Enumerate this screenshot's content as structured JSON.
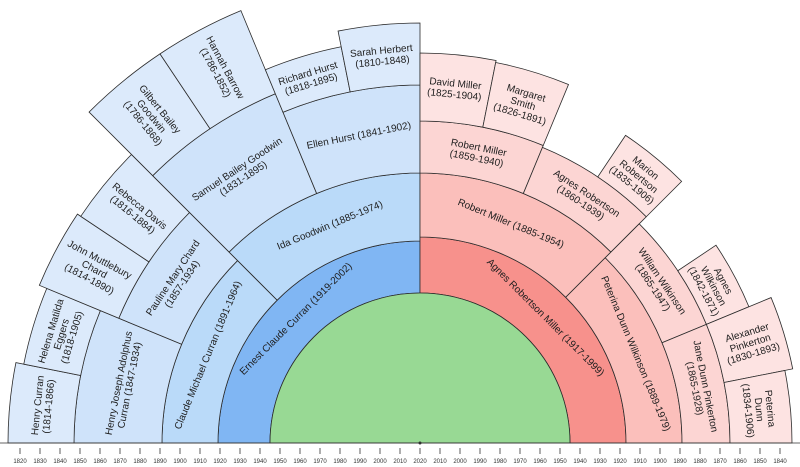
{
  "colors": {
    "left": [
      "#80b6f3",
      "#badaf9",
      "#cfe3fa",
      "#dceafb"
    ],
    "right": [
      "#f7918c",
      "#fbbfbb",
      "#fcd5d3",
      "#fde3e2"
    ],
    "center": "#98d994",
    "stroke": "#2b2b2b"
  },
  "fan_chart": {
    "left": {
      "name": "Ernest Claude Curran",
      "born": 1919,
      "died": 2002,
      "parents": [
        {
          "name": "Claude Michael Curran",
          "born": 1891,
          "died": 1964,
          "parents": [
            {
              "name": "Henry Joseph Adolphus Curran",
              "born": 1847,
              "died": 1934,
              "parents": [
                {
                  "name": "Henry Curran",
                  "born": 1814,
                  "died": 1866
                },
                {
                  "name": "Helena Matilda Eggers",
                  "born": 1818,
                  "died": 1905
                }
              ]
            },
            {
              "name": "Pauline Mary Chard",
              "born": 1857,
              "died": 1934,
              "parents": [
                {
                  "name": "John Muttlebury Chard",
                  "born": 1814,
                  "died": 1890
                },
                {
                  "name": "Rebecca Davis",
                  "born": 1816,
                  "died": 1884
                }
              ]
            }
          ]
        },
        {
          "name": "Ida Goodwin",
          "born": 1885,
          "died": 1974,
          "parents": [
            {
              "name": "Samuel Bailey Goodwin",
              "born": 1831,
              "died": 1895,
              "parents": [
                {
                  "name": "Gilbert Bailey Goodwin",
                  "born": 1786,
                  "died": 1868
                },
                {
                  "name": "Hannah Barrow",
                  "born": 1786,
                  "died": 1852
                }
              ]
            },
            {
              "name": "Ellen Hurst",
              "born": 1841,
              "died": 1902,
              "parents": [
                {
                  "name": "Richard Hurst",
                  "born": 1818,
                  "died": 1895
                },
                {
                  "name": "Sarah Herbert",
                  "born": 1810,
                  "died": 1848
                }
              ]
            }
          ]
        }
      ]
    },
    "right": {
      "name": "Agnes Robertson Miller",
      "born": 1917,
      "died": 1999,
      "parents": [
        {
          "name": "Robert Miller",
          "born": 1885,
          "died": 1954,
          "parents": [
            {
              "name": "Robert Miller",
              "born": 1859,
              "died": 1940,
              "parents": [
                {
                  "name": "David Miller",
                  "born": 1825,
                  "died": 1904
                },
                {
                  "name": "Margaret Smith",
                  "born": 1826,
                  "died": 1891
                }
              ]
            },
            {
              "name": "Agnes Robertson",
              "born": 1860,
              "died": 1939,
              "parents": [
                null,
                {
                  "name": "Marion Robertson",
                  "born": 1835,
                  "died": 1906
                }
              ]
            }
          ]
        },
        {
          "name": "Peterina Dunn Wilkinson",
          "born": 1889,
          "died": 1979,
          "parents": [
            {
              "name": "William Wilkinson",
              "born": 1865,
              "died": 1947,
              "parents": [
                null,
                {
                  "name": "Agnes Wilkinson",
                  "born": 1842,
                  "died": 1871
                }
              ]
            },
            {
              "name": "Jane Dunn Pinkerton",
              "born": 1865,
              "died": 1928,
              "parents": [
                {
                  "name": "Alexander Pinkerton",
                  "born": 1830,
                  "died": 1893
                },
                {
                  "name": "Peterina Dunn",
                  "born": 1834,
                  "died": 1906
                }
              ]
            }
          ]
        }
      ]
    }
  },
  "axis": {
    "left_ticks": [
      "1820",
      "1830",
      "1840",
      "1850",
      "1860",
      "1870",
      "1880",
      "1890",
      "1900",
      "1910",
      "1920",
      "1930",
      "1940",
      "1950",
      "1960",
      "1970",
      "1980",
      "1990",
      "2000",
      "2010"
    ],
    "center_tick": "2020",
    "right_ticks": [
      "2010",
      "2000",
      "1990",
      "1980",
      "1970",
      "1960",
      "1950",
      "1940",
      "1930",
      "1920",
      "1910",
      "1900",
      "1890",
      "1880",
      "1870",
      "1860",
      "1850",
      "1840"
    ]
  }
}
